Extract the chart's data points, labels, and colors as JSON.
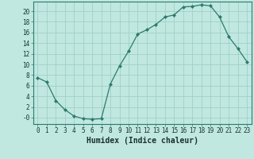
{
  "x": [
    0,
    1,
    2,
    3,
    4,
    5,
    6,
    7,
    8,
    9,
    10,
    11,
    12,
    13,
    14,
    15,
    16,
    17,
    18,
    19,
    20,
    21,
    22,
    23
  ],
  "y": [
    7.5,
    6.7,
    3.2,
    1.5,
    0.3,
    -0.2,
    -0.3,
    -0.2,
    6.3,
    9.7,
    12.5,
    15.7,
    16.5,
    17.5,
    18.9,
    19.3,
    20.8,
    20.9,
    21.2,
    21.0,
    18.9,
    15.2,
    13.0,
    10.5
  ],
  "line_color": "#2d7a6e",
  "marker": "D",
  "marker_size": 2.0,
  "bg_color": "#c0e8e0",
  "grid_color": "#a0d0c8",
  "xlabel": "Humidex (Indice chaleur)",
  "ytick_vals": [
    0,
    2,
    4,
    6,
    8,
    10,
    12,
    14,
    16,
    18,
    20
  ],
  "ytick_labels": [
    "-0",
    "2",
    "4",
    "6",
    "8",
    "10",
    "12",
    "14",
    "16",
    "18",
    "20"
  ],
  "ylim": [
    -1.2,
    21.8
  ],
  "xlim": [
    -0.5,
    23.5
  ],
  "xtick_labels": [
    "0",
    "1",
    "2",
    "3",
    "4",
    "5",
    "6",
    "7",
    "8",
    "9",
    "10",
    "11",
    "12",
    "13",
    "14",
    "15",
    "16",
    "17",
    "18",
    "19",
    "20",
    "21",
    "22",
    "23"
  ],
  "label_fontsize": 6.5,
  "tick_fontsize": 5.5,
  "xlabel_fontsize": 7.0,
  "line_width": 0.9
}
